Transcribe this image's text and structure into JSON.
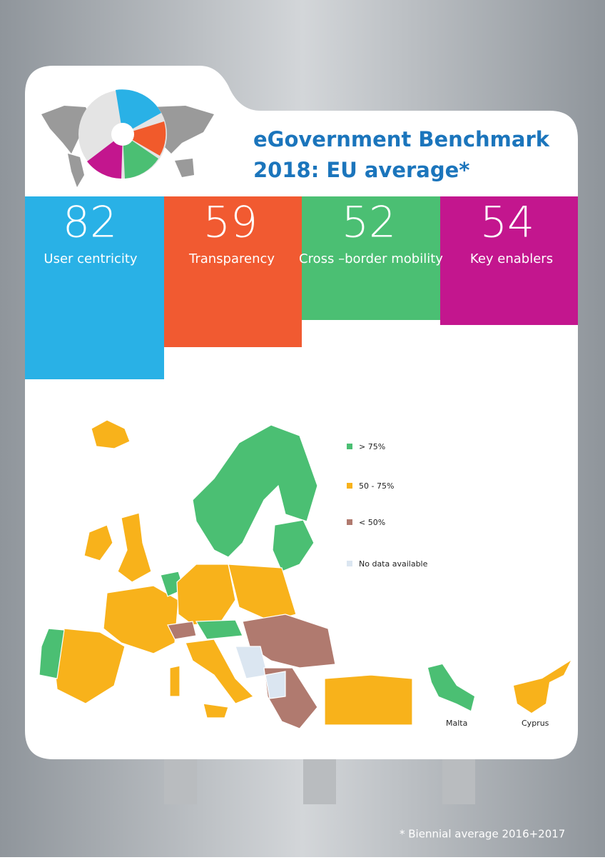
{
  "header": {
    "title": [
      "eGovernment Benchmark",
      "2018: EU average*"
    ]
  },
  "indicators": [
    {
      "value": 82,
      "label": "User centricity"
    },
    {
      "value": 59,
      "label": "Transparency"
    },
    {
      "value": 52,
      "label": "Cross –border mobility"
    },
    {
      "value": 54,
      "label": "Key enablers"
    }
  ],
  "legend": [
    "> 75%",
    "50 - 75%",
    "< 50%",
    "No data available"
  ],
  "insets": [
    "Malta",
    "Cyprus"
  ],
  "footnote": "* Biennial average 2016+2017"
}
